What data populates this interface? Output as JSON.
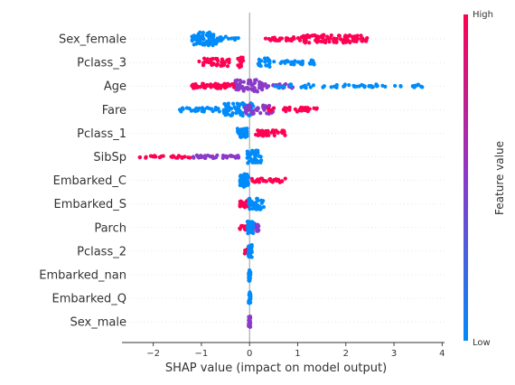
{
  "chart_data": {
    "type": "scatter",
    "subtype": "shap-beeswarm-summary",
    "title": "",
    "xlabel": "SHAP value (impact on model output)",
    "ylabel": "",
    "xlim": [
      -2.65,
      4.05
    ],
    "x_ticks": [
      -2,
      -1,
      0,
      1,
      2,
      3,
      4
    ],
    "x_tick_labels": [
      "−2",
      "−1",
      "0",
      "1",
      "2",
      "3",
      "4"
    ],
    "grid": false,
    "zero_line": true,
    "colorbar": {
      "label": "Feature value",
      "high_label": "High",
      "low_label": "Low",
      "high_color": "#ff0052",
      "mid_color": "#8a3ac9",
      "low_color": "#008bfb"
    },
    "features": [
      {
        "name": "Sex_female",
        "clusters": [
          {
            "x_min": -1.2,
            "x_max": -0.65,
            "count": 75,
            "color": "low",
            "spread": 0.9
          },
          {
            "x_min": -0.65,
            "x_max": -0.2,
            "count": 12,
            "color": "low",
            "spread": 0.3
          },
          {
            "x_min": 0.3,
            "x_max": 1.1,
            "count": 30,
            "color": "high",
            "spread": 0.25
          },
          {
            "x_min": 1.1,
            "x_max": 2.45,
            "count": 90,
            "color": "high",
            "spread": 0.55
          }
        ]
      },
      {
        "name": "Pclass_3",
        "clusters": [
          {
            "x_min": -1.05,
            "x_max": -0.4,
            "count": 40,
            "color": "high",
            "spread": 0.55
          },
          {
            "x_min": -0.25,
            "x_max": -0.12,
            "count": 15,
            "color": "high",
            "spread": 0.7
          },
          {
            "x_min": 0.15,
            "x_max": 0.45,
            "count": 20,
            "color": "low",
            "spread": 0.6
          },
          {
            "x_min": 0.5,
            "x_max": 1.35,
            "count": 30,
            "color": "low",
            "spread": 0.3
          }
        ]
      },
      {
        "name": "Age",
        "clusters": [
          {
            "x_min": -1.2,
            "x_max": -0.2,
            "count": 70,
            "color": "high",
            "spread": 0.35
          },
          {
            "x_min": -0.3,
            "x_max": 0.3,
            "count": 55,
            "color": "mid",
            "spread": 0.85
          },
          {
            "x_min": 0.2,
            "x_max": 0.9,
            "count": 25,
            "color": "mid",
            "spread": 0.3
          },
          {
            "x_min": 0.5,
            "x_max": 3.7,
            "count": 60,
            "color": "low",
            "spread": 0.25
          }
        ]
      },
      {
        "name": "Fare",
        "clusters": [
          {
            "x_min": -1.45,
            "x_max": -0.6,
            "count": 30,
            "color": "low",
            "spread": 0.3
          },
          {
            "x_min": -0.55,
            "x_max": 0.1,
            "count": 70,
            "color": "low",
            "spread": 0.9
          },
          {
            "x_min": -0.1,
            "x_max": 0.5,
            "count": 40,
            "color": "mid",
            "spread": 0.6
          },
          {
            "x_min": 0.3,
            "x_max": 1.4,
            "count": 35,
            "color": "high",
            "spread": 0.3
          }
        ]
      },
      {
        "name": "Pclass_1",
        "clusters": [
          {
            "x_min": -0.25,
            "x_max": -0.05,
            "count": 50,
            "color": "low",
            "spread": 0.65
          },
          {
            "x_min": 0.1,
            "x_max": 0.75,
            "count": 45,
            "color": "high",
            "spread": 0.4
          }
        ]
      },
      {
        "name": "SibSp",
        "clusters": [
          {
            "x_min": -2.35,
            "x_max": -1.2,
            "count": 25,
            "color": "high",
            "spread": 0.15
          },
          {
            "x_min": -1.2,
            "x_max": -0.2,
            "count": 40,
            "color": "mid",
            "spread": 0.2
          },
          {
            "x_min": -0.05,
            "x_max": 0.25,
            "count": 50,
            "color": "low",
            "spread": 0.9
          }
        ]
      },
      {
        "name": "Embarked_C",
        "clusters": [
          {
            "x_min": -0.2,
            "x_max": -0.02,
            "count": 60,
            "color": "low",
            "spread": 0.9
          },
          {
            "x_min": 0.05,
            "x_max": 0.75,
            "count": 35,
            "color": "high",
            "spread": 0.3
          }
        ]
      },
      {
        "name": "Embarked_S",
        "clusters": [
          {
            "x_min": -0.22,
            "x_max": 0.0,
            "count": 35,
            "color": "high",
            "spread": 0.45
          },
          {
            "x_min": -0.02,
            "x_max": 0.3,
            "count": 40,
            "color": "low",
            "spread": 0.75
          }
        ]
      },
      {
        "name": "Parch",
        "clusters": [
          {
            "x_min": -0.22,
            "x_max": -0.02,
            "count": 12,
            "color": "high",
            "spread": 0.3
          },
          {
            "x_min": -0.05,
            "x_max": 0.2,
            "count": 25,
            "color": "mid",
            "spread": 0.55
          },
          {
            "x_min": -0.05,
            "x_max": 0.08,
            "count": 30,
            "color": "low",
            "spread": 0.85
          }
        ]
      },
      {
        "name": "Pclass_2",
        "clusters": [
          {
            "x_min": -0.15,
            "x_max": -0.02,
            "count": 10,
            "color": "high",
            "spread": 0.35
          },
          {
            "x_min": -0.03,
            "x_max": 0.05,
            "count": 30,
            "color": "low",
            "spread": 0.85
          }
        ]
      },
      {
        "name": "Embarked_nan",
        "clusters": [
          {
            "x_min": -0.02,
            "x_max": 0.02,
            "count": 30,
            "color": "low",
            "spread": 0.85
          }
        ]
      },
      {
        "name": "Embarked_Q",
        "clusters": [
          {
            "x_min": -0.02,
            "x_max": 0.02,
            "count": 30,
            "color": "low",
            "spread": 0.85
          }
        ]
      },
      {
        "name": "Sex_male",
        "clusters": [
          {
            "x_min": -0.02,
            "x_max": 0.02,
            "count": 30,
            "color": "mid",
            "spread": 0.85
          }
        ]
      }
    ]
  }
}
